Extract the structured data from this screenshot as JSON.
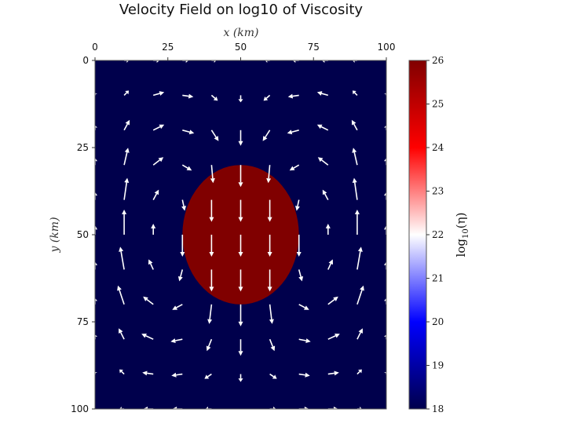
{
  "chart_data": {
    "type": "heatmap",
    "title": "Velocity Field on log10 of Viscosity",
    "xlabel": "x (km)",
    "ylabel": "y (km)",
    "xlim": [
      0,
      100
    ],
    "ylim": [
      100,
      0
    ],
    "x_ticks": [
      "0",
      "25",
      "50",
      "75",
      "100"
    ],
    "y_ticks": [
      "0",
      "25",
      "50",
      "75",
      "100"
    ],
    "x_axis_position": "top",
    "y_axis_inverted": true,
    "colormap": "seismic",
    "colormap_stops": [
      "#00004c",
      "#0000ff",
      "#ffffff",
      "#ff0000",
      "#800000"
    ],
    "colorbar": {
      "label_main": "log",
      "label_sub": "10",
      "label_arg": "(η)",
      "range": [
        18,
        26
      ],
      "ticks": [
        "18",
        "19",
        "20",
        "21",
        "22",
        "23",
        "24",
        "25",
        "26"
      ]
    },
    "field": {
      "background_value": 18,
      "inclusion": {
        "shape": "circle",
        "center_km": [
          50,
          50
        ],
        "radius_km": 20,
        "value": 26
      }
    },
    "quiver": {
      "x_km": [
        0,
        10,
        20,
        30,
        40,
        50,
        60,
        70,
        80,
        90,
        100
      ],
      "y_km": [
        0,
        10,
        20,
        30,
        40,
        50,
        60,
        70,
        80,
        90,
        100
      ],
      "color": "#ffffff",
      "vectors_uv": [
        [
          [
            0,
            0
          ],
          [
            6,
            0
          ],
          [
            8,
            0
          ],
          [
            8,
            0
          ],
          [
            6,
            0
          ],
          [
            0,
            0
          ],
          [
            -6,
            0
          ],
          [
            -8,
            0
          ],
          [
            -8,
            0
          ],
          [
            -6,
            0
          ],
          [
            0,
            0
          ]
        ],
        [
          [
            0,
            -3
          ],
          [
            6,
            -6
          ],
          [
            14,
            -4
          ],
          [
            14,
            2
          ],
          [
            8,
            7
          ],
          [
            0,
            9
          ],
          [
            -8,
            7
          ],
          [
            -14,
            2
          ],
          [
            -14,
            -4
          ],
          [
            -6,
            -6
          ],
          [
            0,
            -3
          ]
        ],
        [
          [
            0,
            -6
          ],
          [
            7,
            -13
          ],
          [
            14,
            -7
          ],
          [
            15,
            4
          ],
          [
            9,
            14
          ],
          [
            0,
            20
          ],
          [
            -9,
            14
          ],
          [
            -15,
            4
          ],
          [
            -14,
            -7
          ],
          [
            -7,
            -13
          ],
          [
            0,
            -6
          ]
        ],
        [
          [
            0,
            -9
          ],
          [
            5,
            -22
          ],
          [
            13,
            -10
          ],
          [
            12,
            7
          ],
          [
            2,
            23
          ],
          [
            0,
            28
          ],
          [
            -2,
            23
          ],
          [
            -12,
            7
          ],
          [
            -13,
            -10
          ],
          [
            -5,
            -22
          ],
          [
            0,
            -9
          ]
        ],
        [
          [
            0,
            -10
          ],
          [
            4,
            -28
          ],
          [
            7,
            -13
          ],
          [
            3,
            14
          ],
          [
            0,
            28
          ],
          [
            0,
            28
          ],
          [
            0,
            28
          ],
          [
            -3,
            14
          ],
          [
            -7,
            -13
          ],
          [
            -4,
            -28
          ],
          [
            0,
            -10
          ]
        ],
        [
          [
            0,
            -12
          ],
          [
            0,
            -32
          ],
          [
            0,
            -14
          ],
          [
            0,
            28
          ],
          [
            0,
            28
          ],
          [
            0,
            28
          ],
          [
            0,
            28
          ],
          [
            0,
            28
          ],
          [
            0,
            -14
          ],
          [
            0,
            -32
          ],
          [
            0,
            -12
          ]
        ],
        [
          [
            0,
            -10
          ],
          [
            -5,
            -29
          ],
          [
            -6,
            -13
          ],
          [
            -4,
            15
          ],
          [
            0,
            28
          ],
          [
            0,
            28
          ],
          [
            0,
            28
          ],
          [
            4,
            15
          ],
          [
            6,
            -13
          ],
          [
            5,
            -29
          ],
          [
            0,
            -10
          ]
        ],
        [
          [
            0,
            -8
          ],
          [
            -8,
            -24
          ],
          [
            -13,
            -10
          ],
          [
            -13,
            7
          ],
          [
            -3,
            25
          ],
          [
            0,
            28
          ],
          [
            3,
            25
          ],
          [
            13,
            7
          ],
          [
            13,
            -10
          ],
          [
            8,
            -24
          ],
          [
            0,
            -8
          ]
        ],
        [
          [
            0,
            -6
          ],
          [
            -7,
            -14
          ],
          [
            -15,
            -7
          ],
          [
            -15,
            3
          ],
          [
            -6,
            15
          ],
          [
            0,
            21
          ],
          [
            6,
            15
          ],
          [
            15,
            3
          ],
          [
            15,
            -7
          ],
          [
            7,
            -14
          ],
          [
            0,
            -6
          ]
        ],
        [
          [
            0,
            -3
          ],
          [
            -6,
            -6
          ],
          [
            -14,
            -2
          ],
          [
            -14,
            2
          ],
          [
            -9,
            6
          ],
          [
            0,
            10
          ],
          [
            9,
            6
          ],
          [
            14,
            2
          ],
          [
            14,
            -2
          ],
          [
            6,
            -6
          ],
          [
            0,
            -3
          ]
        ],
        [
          [
            0,
            0
          ],
          [
            -6,
            0
          ],
          [
            -13,
            0
          ],
          [
            -13,
            0
          ],
          [
            -8,
            0
          ],
          [
            0,
            0
          ],
          [
            8,
            0
          ],
          [
            13,
            0
          ],
          [
            13,
            0
          ],
          [
            6,
            0
          ],
          [
            0,
            0
          ]
        ]
      ]
    }
  }
}
